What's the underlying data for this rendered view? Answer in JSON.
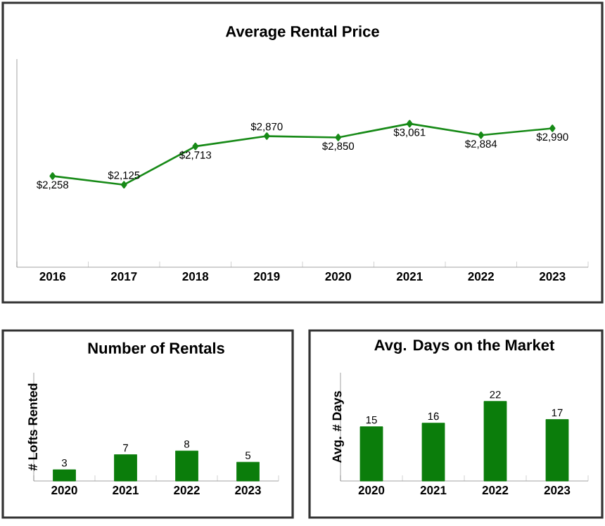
{
  "chart_data": [
    {
      "type": "line",
      "title": "Average Rental Price",
      "categories": [
        "2016",
        "2017",
        "2018",
        "2019",
        "2020",
        "2021",
        "2022",
        "2023"
      ],
      "values": [
        2258,
        2125,
        2713,
        2870,
        2850,
        3061,
        2884,
        2990
      ],
      "value_labels": [
        "$2,258",
        "$2,125",
        "$2,713",
        "$2,870",
        "$2,850",
        "$3,061",
        "$2,884",
        "$2,990"
      ],
      "color": "#178a17",
      "marker": "diamond"
    },
    {
      "type": "bar",
      "title": "Number of Rentals",
      "ylabel": "# Lofts Rented",
      "categories": [
        "2020",
        "2021",
        "2022",
        "2023"
      ],
      "values": [
        3,
        7,
        8,
        5
      ],
      "color": "#0b7d0b",
      "data_labels": true
    },
    {
      "type": "bar",
      "title": "Avg. Days on the Market",
      "ylabel": "Avg. # Days",
      "categories": [
        "2020",
        "2021",
        "2022",
        "2023"
      ],
      "values": [
        15,
        16,
        22,
        17
      ],
      "color": "#0b7d0b",
      "data_labels": true
    }
  ]
}
